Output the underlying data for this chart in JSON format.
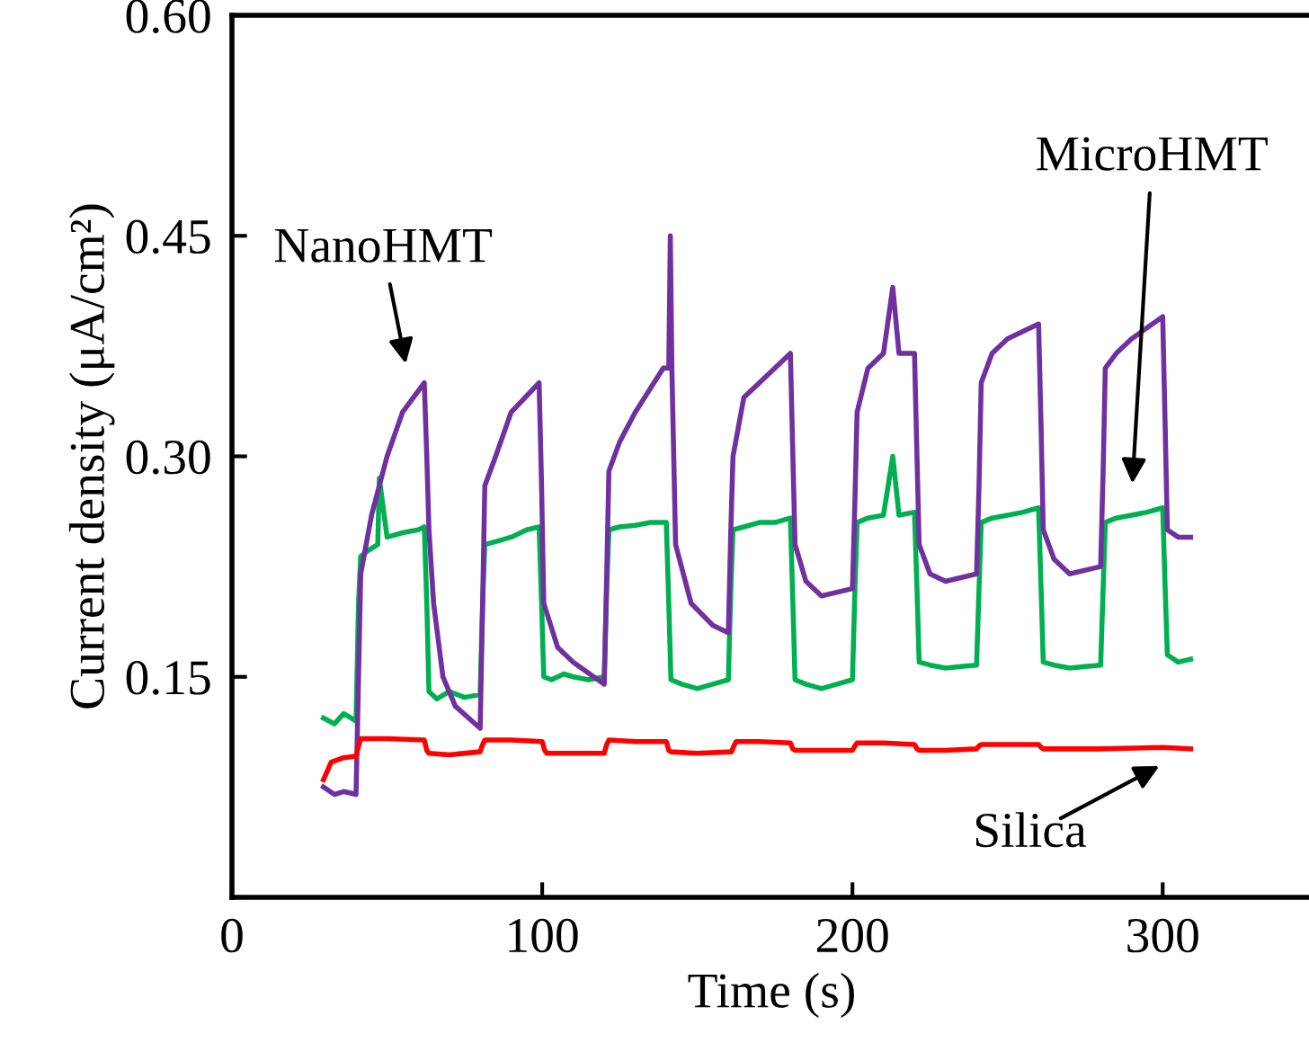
{
  "chart_data": {
    "type": "line",
    "xlabel": "Time (s)",
    "ylabel": "Current density (μA/cm²)",
    "xlim": [
      0,
      348
    ],
    "ylim": [
      0,
      0.6
    ],
    "xticks": [
      0,
      100,
      200,
      300
    ],
    "yticks": [
      {
        "value": 0,
        "label": null
      },
      {
        "value": 0.15,
        "label": "0.15"
      },
      {
        "value": 0.3,
        "label": "0.30"
      },
      {
        "value": 0.45,
        "label": "0.45"
      },
      {
        "value": 0.6,
        "label": "0.60"
      }
    ],
    "grid": false,
    "legend": false,
    "marker": "none",
    "line_style": "solid",
    "series": [
      {
        "color": "#00b050",
        "x": [
          29.5,
          33,
          36,
          40,
          40.8,
          41.5,
          44,
          47,
          47.5,
          50,
          55,
          60,
          62,
          62.8,
          63.5,
          66,
          70,
          75,
          80,
          80.8,
          81.5,
          85,
          90,
          95,
          99,
          99.8,
          100.5,
          103,
          107,
          110,
          115,
          120,
          120.8,
          121.5,
          125,
          130,
          135,
          140,
          140.8,
          141.5,
          145,
          150,
          155,
          160,
          160.8,
          161.5,
          165,
          170,
          175,
          180,
          180.8,
          181.5,
          185,
          190,
          195,
          200,
          200.8,
          201.5,
          205,
          210,
          213,
          215,
          220,
          220.8,
          221.5,
          225,
          230,
          235,
          240,
          240.8,
          241.5,
          245,
          250,
          255,
          260,
          260.8,
          261.5,
          265,
          270,
          275,
          280,
          280.8,
          281.5,
          285,
          290,
          295,
          300,
          300.8,
          301.5,
          305,
          309
        ],
        "values": [
          0.122,
          0.118,
          0.125,
          0.12,
          0.2,
          0.232,
          0.236,
          0.24,
          0.285,
          0.245,
          0.248,
          0.25,
          0.252,
          0.2,
          0.14,
          0.135,
          0.14,
          0.136,
          0.138,
          0.2,
          0.24,
          0.242,
          0.245,
          0.25,
          0.252,
          0.2,
          0.15,
          0.148,
          0.152,
          0.15,
          0.148,
          0.15,
          0.21,
          0.25,
          0.252,
          0.253,
          0.255,
          0.255,
          0.2,
          0.148,
          0.145,
          0.142,
          0.145,
          0.148,
          0.21,
          0.25,
          0.252,
          0.255,
          0.255,
          0.258,
          0.2,
          0.148,
          0.145,
          0.142,
          0.145,
          0.148,
          0.21,
          0.255,
          0.258,
          0.26,
          0.3,
          0.26,
          0.262,
          0.21,
          0.16,
          0.158,
          0.156,
          0.157,
          0.158,
          0.21,
          0.255,
          0.258,
          0.26,
          0.262,
          0.265,
          0.21,
          0.16,
          0.158,
          0.156,
          0.157,
          0.158,
          0.21,
          0.255,
          0.258,
          0.26,
          0.262,
          0.265,
          0.21,
          0.165,
          0.16,
          0.162
        ]
      },
      {
        "color": "#7030a0",
        "x": [
          29.5,
          33,
          36,
          40,
          40.8,
          41.5,
          45,
          50,
          55,
          62,
          62.8,
          63.5,
          65,
          68,
          72,
          80,
          80.8,
          81.5,
          85,
          90,
          99,
          99.8,
          100.5,
          105,
          110,
          120,
          120.8,
          121.5,
          125,
          130,
          139,
          140.8,
          141.3,
          141.8,
          143,
          148,
          155,
          160,
          160.8,
          161.5,
          165,
          170,
          180,
          180.8,
          181.5,
          185,
          190,
          200,
          200.8,
          201.5,
          205,
          210,
          213,
          215,
          220,
          220.8,
          221.5,
          225,
          230,
          240,
          240.8,
          241.5,
          245,
          250,
          260,
          260.8,
          261.5,
          265,
          270,
          280,
          280.8,
          281.5,
          285,
          290,
          300,
          300.8,
          301.5,
          305,
          309
        ],
        "values": [
          0.075,
          0.07,
          0.072,
          0.07,
          0.15,
          0.22,
          0.26,
          0.3,
          0.33,
          0.35,
          0.3,
          0.25,
          0.2,
          0.15,
          0.13,
          0.115,
          0.2,
          0.28,
          0.3,
          0.33,
          0.35,
          0.28,
          0.2,
          0.17,
          0.16,
          0.145,
          0.22,
          0.29,
          0.31,
          0.33,
          0.36,
          0.36,
          0.45,
          0.36,
          0.24,
          0.2,
          0.185,
          0.18,
          0.25,
          0.3,
          0.34,
          0.35,
          0.37,
          0.3,
          0.24,
          0.215,
          0.205,
          0.21,
          0.27,
          0.33,
          0.36,
          0.37,
          0.415,
          0.37,
          0.37,
          0.3,
          0.24,
          0.22,
          0.215,
          0.22,
          0.28,
          0.35,
          0.37,
          0.38,
          0.39,
          0.32,
          0.25,
          0.23,
          0.22,
          0.225,
          0.29,
          0.36,
          0.37,
          0.38,
          0.395,
          0.32,
          0.25,
          0.245,
          0.245
        ]
      },
      {
        "color": "#ff0000",
        "x": [
          29.5,
          32,
          36,
          40,
          40.8,
          41.5,
          50,
          62,
          62.8,
          63.5,
          70,
          80,
          80.8,
          81.5,
          90,
          100,
          100.8,
          101.5,
          110,
          120,
          120.8,
          121.5,
          130,
          140,
          140.8,
          141.5,
          150,
          161,
          161.8,
          162.5,
          170,
          180,
          180.8,
          181.5,
          190,
          200,
          200.8,
          201.5,
          210,
          220,
          220.8,
          221.5,
          230,
          240,
          240.8,
          241.5,
          250,
          260,
          260.8,
          261.5,
          280,
          300,
          309
        ],
        "values": [
          0.08,
          0.092,
          0.095,
          0.096,
          0.103,
          0.108,
          0.108,
          0.107,
          0.1,
          0.098,
          0.097,
          0.099,
          0.104,
          0.107,
          0.107,
          0.106,
          0.1,
          0.098,
          0.098,
          0.098,
          0.104,
          0.107,
          0.106,
          0.106,
          0.1,
          0.099,
          0.098,
          0.099,
          0.103,
          0.106,
          0.106,
          0.105,
          0.101,
          0.1,
          0.1,
          0.1,
          0.103,
          0.105,
          0.105,
          0.104,
          0.101,
          0.1,
          0.1,
          0.101,
          0.103,
          0.104,
          0.104,
          0.104,
          0.102,
          0.101,
          0.101,
          0.102,
          0.101
        ]
      }
    ],
    "annotations": [
      "NanoHMT",
      "MicroHMT",
      "Silica"
    ]
  }
}
